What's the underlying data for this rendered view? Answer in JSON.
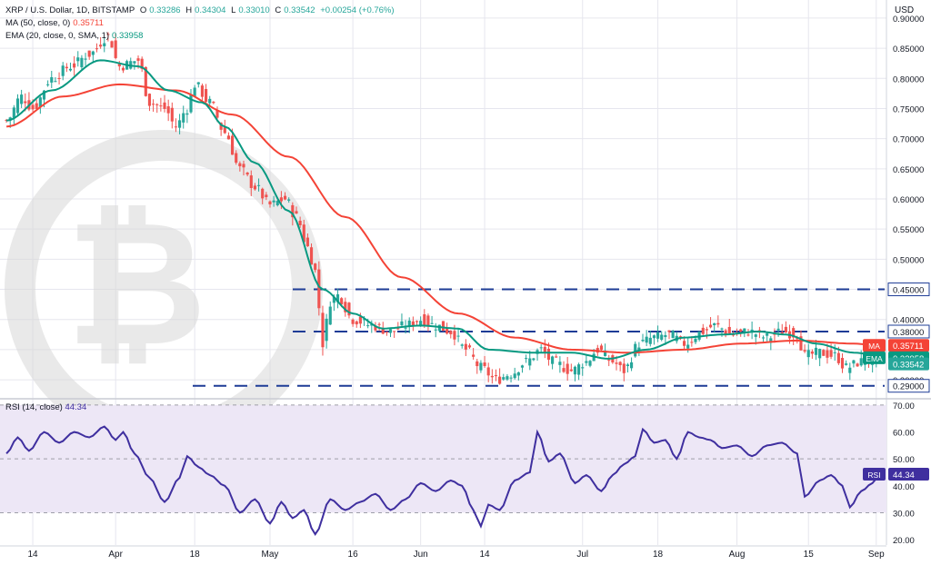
{
  "header": {
    "symbol": "XRP / U.S. Dollar, 1D, BITSTAMP",
    "ohlc": {
      "o_label": "O",
      "o": "0.33286",
      "h_label": "H",
      "h": "0.34304",
      "l_label": "L",
      "l": "0.33010",
      "c_label": "C",
      "c": "0.33542",
      "change": "+0.00254 (+0.76%)"
    },
    "ma_label": "MA (50, close, 0)",
    "ma_value": "0.35711",
    "ema_label": "EMA (20, close, 0, SMA, 1)",
    "ema_value": "0.33958",
    "currency": "USD"
  },
  "rsi_panel": {
    "label": "RSI (14, close)",
    "value": "44.34"
  },
  "colors": {
    "up": "#26a69a",
    "down": "#ef5350",
    "ma": "#f44336",
    "ema": "#089981",
    "rsi": "#3f2f9f",
    "rsi_band": "#ede7f6",
    "level_line": "#1e3c96",
    "grid": "#e6e6ee",
    "watermark": "#d8d8d8"
  },
  "chart_data": [
    {
      "type": "candlestick",
      "title": "XRP / U.S. Dollar, 1D, BITSTAMP",
      "ylabel": "USD",
      "ylim": [
        0.27,
        0.93
      ],
      "y_ticks": [
        "0.90000",
        "0.85000",
        "0.80000",
        "0.75000",
        "0.70000",
        "0.65000",
        "0.60000",
        "0.55000",
        "0.50000",
        "0.45000",
        "0.40000",
        "0.35000",
        "0.30000"
      ],
      "x_ticks": [
        "14",
        "Apr",
        "18",
        "May",
        "16",
        "Jun",
        "14",
        "Jul",
        "18",
        "Aug",
        "15",
        "Sep"
      ],
      "horizontal_levels": [
        {
          "label": "0.45000",
          "value": 0.45
        },
        {
          "label": "0.38000",
          "value": 0.38
        },
        {
          "label": "0.29000",
          "value": 0.29
        }
      ],
      "price_tags": [
        {
          "name": "MA",
          "label": "0.35711",
          "value": 0.35711
        },
        {
          "name": "EMA",
          "label": "0.33958",
          "value": 0.33958
        },
        {
          "name": "",
          "label": "0.33542",
          "value": 0.33542
        }
      ],
      "series": [
        {
          "name": "MA",
          "period": 50,
          "anchors": [
            [
              0,
              0.72
            ],
            [
              15,
              0.77
            ],
            [
              30,
              0.79
            ],
            [
              45,
              0.78
            ],
            [
              60,
              0.74
            ],
            [
              75,
              0.67
            ],
            [
              90,
              0.57
            ],
            [
              105,
              0.47
            ],
            [
              120,
              0.41
            ],
            [
              135,
              0.37
            ],
            [
              150,
              0.35
            ],
            [
              165,
              0.345
            ],
            [
              180,
              0.35
            ],
            [
              195,
              0.36
            ],
            [
              210,
              0.365
            ],
            [
              225,
              0.36
            ],
            [
              232,
              0.357
            ]
          ]
        },
        {
          "name": "EMA",
          "period": 20,
          "anchors": [
            [
              0,
              0.73
            ],
            [
              12,
              0.78
            ],
            [
              25,
              0.83
            ],
            [
              35,
              0.82
            ],
            [
              43,
              0.78
            ],
            [
              52,
              0.76
            ],
            [
              58,
              0.72
            ],
            [
              66,
              0.66
            ],
            [
              75,
              0.58
            ],
            [
              84,
              0.45
            ],
            [
              92,
              0.41
            ],
            [
              100,
              0.385
            ],
            [
              110,
              0.39
            ],
            [
              120,
              0.385
            ],
            [
              128,
              0.35
            ],
            [
              140,
              0.345
            ],
            [
              150,
              0.345
            ],
            [
              160,
              0.335
            ],
            [
              170,
              0.35
            ],
            [
              180,
              0.37
            ],
            [
              190,
              0.375
            ],
            [
              200,
              0.38
            ],
            [
              207,
              0.375
            ],
            [
              215,
              0.36
            ],
            [
              225,
              0.345
            ],
            [
              232,
              0.34
            ]
          ]
        },
        {
          "name": "close",
          "anchors": [
            [
              0,
              0.73
            ],
            [
              4,
              0.77
            ],
            [
              7,
              0.75
            ],
            [
              12,
              0.8
            ],
            [
              17,
              0.82
            ],
            [
              22,
              0.84
            ],
            [
              27,
              0.87
            ],
            [
              30,
              0.82
            ],
            [
              35,
              0.83
            ],
            [
              38,
              0.76
            ],
            [
              42,
              0.75
            ],
            [
              45,
              0.72
            ],
            [
              48,
              0.75
            ],
            [
              50,
              0.79
            ],
            [
              54,
              0.76
            ],
            [
              58,
              0.71
            ],
            [
              62,
              0.65
            ],
            [
              66,
              0.62
            ],
            [
              70,
              0.59
            ],
            [
              74,
              0.6
            ],
            [
              77,
              0.57
            ],
            [
              80,
              0.52
            ],
            [
              82,
              0.48
            ],
            [
              84,
              0.36
            ],
            [
              86,
              0.43
            ],
            [
              88,
              0.44
            ],
            [
              92,
              0.4
            ],
            [
              97,
              0.39
            ],
            [
              102,
              0.38
            ],
            [
              106,
              0.39
            ],
            [
              110,
              0.4
            ],
            [
              114,
              0.39
            ],
            [
              118,
              0.38
            ],
            [
              122,
              0.35
            ],
            [
              126,
              0.32
            ],
            [
              130,
              0.3
            ],
            [
              134,
              0.31
            ],
            [
              138,
              0.33
            ],
            [
              142,
              0.35
            ],
            [
              145,
              0.33
            ],
            [
              150,
              0.315
            ],
            [
              154,
              0.33
            ],
            [
              157,
              0.35
            ],
            [
              161,
              0.33
            ],
            [
              164,
              0.315
            ],
            [
              168,
              0.36
            ],
            [
              172,
              0.37
            ],
            [
              176,
              0.375
            ],
            [
              180,
              0.36
            ],
            [
              185,
              0.38
            ],
            [
              188,
              0.39
            ],
            [
              193,
              0.375
            ],
            [
              197,
              0.38
            ],
            [
              202,
              0.37
            ],
            [
              206,
              0.38
            ],
            [
              210,
              0.375
            ],
            [
              212,
              0.34
            ],
            [
              216,
              0.345
            ],
            [
              220,
              0.34
            ],
            [
              223,
              0.32
            ],
            [
              227,
              0.33
            ],
            [
              232,
              0.335
            ]
          ]
        }
      ]
    },
    {
      "type": "line",
      "title": "RSI (14, close)",
      "ylim": [
        18,
        72
      ],
      "y_ticks": [
        "70.00",
        "60.00",
        "50.00",
        "40.00",
        "30.00",
        "20.00"
      ],
      "bands": [
        30,
        70
      ],
      "midline": 50,
      "series": [
        {
          "name": "RSI",
          "last": 44.34,
          "anchors": [
            [
              0,
              52
            ],
            [
              3,
              58
            ],
            [
              6,
              53
            ],
            [
              10,
              60
            ],
            [
              14,
              56
            ],
            [
              18,
              60
            ],
            [
              22,
              58
            ],
            [
              26,
              62
            ],
            [
              29,
              57
            ],
            [
              31,
              60
            ],
            [
              34,
              52
            ],
            [
              38,
              43
            ],
            [
              42,
              34
            ],
            [
              46,
              43
            ],
            [
              48,
              51
            ],
            [
              51,
              47
            ],
            [
              54,
              44
            ],
            [
              58,
              40
            ],
            [
              62,
              30
            ],
            [
              66,
              35
            ],
            [
              70,
              26
            ],
            [
              73,
              34
            ],
            [
              76,
              28
            ],
            [
              79,
              31
            ],
            [
              82,
              22
            ],
            [
              86,
              35
            ],
            [
              90,
              31
            ],
            [
              94,
              34
            ],
            [
              98,
              37
            ],
            [
              102,
              31
            ],
            [
              106,
              35
            ],
            [
              110,
              41
            ],
            [
              114,
              38
            ],
            [
              118,
              42
            ],
            [
              121,
              40
            ],
            [
              124,
              31
            ],
            [
              126,
              25
            ],
            [
              128,
              33
            ],
            [
              131,
              31
            ],
            [
              135,
              42
            ],
            [
              139,
              45
            ],
            [
              141,
              60
            ],
            [
              144,
              49
            ],
            [
              147,
              52
            ],
            [
              151,
              41
            ],
            [
              154,
              44
            ],
            [
              158,
              38
            ],
            [
              161,
              44
            ],
            [
              164,
              48
            ],
            [
              167,
              51
            ],
            [
              169,
              61
            ],
            [
              172,
              56
            ],
            [
              175,
              57
            ],
            [
              178,
              50
            ],
            [
              181,
              60
            ],
            [
              184,
              58
            ],
            [
              187,
              57
            ],
            [
              190,
              54
            ],
            [
              194,
              55
            ],
            [
              198,
              51
            ],
            [
              202,
              55
            ],
            [
              206,
              56
            ],
            [
              210,
              52
            ],
            [
              212,
              36
            ],
            [
              216,
              42
            ],
            [
              219,
              44
            ],
            [
              222,
              40
            ],
            [
              224,
              32
            ],
            [
              227,
              38
            ],
            [
              230,
              41
            ],
            [
              232,
              44.34
            ]
          ]
        }
      ]
    }
  ]
}
